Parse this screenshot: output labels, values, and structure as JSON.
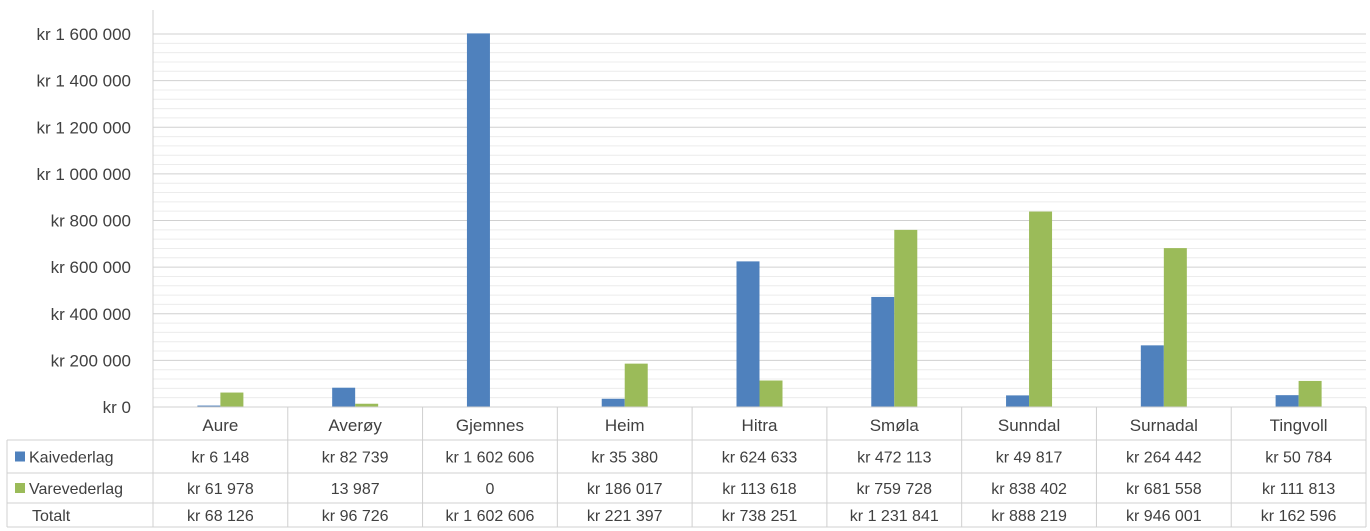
{
  "chart_data": {
    "type": "bar",
    "categories": [
      "Aure",
      "Averøy",
      "Gjemnes",
      "Heim",
      "Hitra",
      "Smøla",
      "Sunndal",
      "Surnadal",
      "Tingvoll"
    ],
    "series": [
      {
        "name": "Kaivederlag",
        "color": "#4f81bd",
        "values": [
          6148,
          82739,
          1602606,
          35380,
          624633,
          472113,
          49817,
          264442,
          50784
        ],
        "labels": [
          "kr 6 148",
          "kr 82 739",
          "kr 1 602 606",
          "kr 35 380",
          "kr 624 633",
          "kr 472 113",
          "kr 49 817",
          "kr 264 442",
          "kr 50 784"
        ]
      },
      {
        "name": "Varevederlag",
        "color": "#9bbb59",
        "values": [
          61978,
          13987,
          0,
          186017,
          113618,
          759728,
          838402,
          681558,
          111813
        ],
        "labels": [
          "kr 61 978",
          "13 987",
          "0",
          "kr 186 017",
          "kr 113 618",
          "kr 759 728",
          "kr 838 402",
          "kr 681 558",
          "kr 111 813"
        ]
      }
    ],
    "total_row": {
      "name": "Totalt",
      "labels": [
        "kr 68 126",
        "kr 96 726",
        "kr 1 602 606",
        "kr 221 397",
        "kr 738 251",
        "kr 1 231 841",
        "kr 888 219",
        "kr 946 001",
        "kr 162 596"
      ]
    },
    "ylim": [
      0,
      1600000
    ],
    "y_ticks": [
      0,
      200000,
      400000,
      600000,
      800000,
      1000000,
      1200000,
      1400000,
      1600000
    ],
    "y_tick_labels": [
      "kr 0",
      "kr 200 000",
      "kr 400 000",
      "kr 600 000",
      "kr 800 000",
      "kr 1 000 000",
      "kr 1 200 000",
      "kr 1 400 000",
      "kr 1 600 000"
    ],
    "grid": true,
    "legend": "data-table"
  }
}
